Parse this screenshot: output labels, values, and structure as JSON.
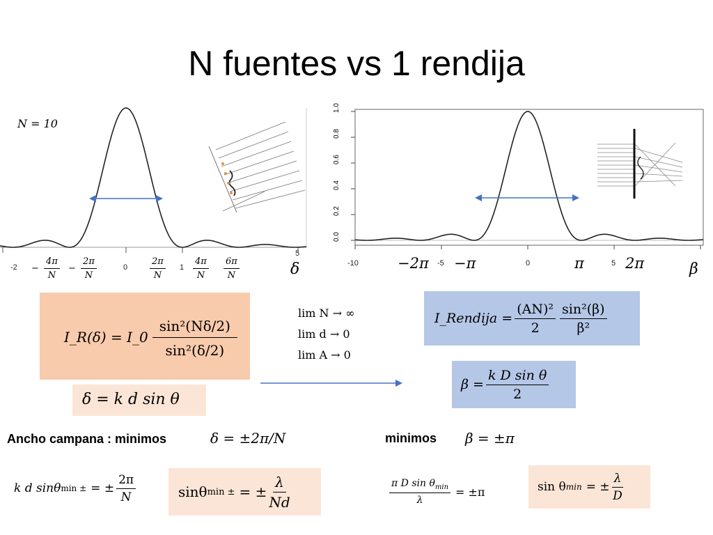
{
  "title": "N fuentes vs 1 rendija",
  "left_plot": {
    "n_label": "N = 10",
    "tick_numbers": [
      "-2",
      "0",
      "1",
      "5"
    ],
    "tick_fracs": [
      {
        "sign": "−",
        "num": "4π",
        "den": "N"
      },
      {
        "sign": "−",
        "num": "2π",
        "den": "N"
      },
      {
        "sign": "",
        "num": "2π",
        "den": "N"
      },
      {
        "sign": "",
        "num": "4π",
        "den": "N"
      },
      {
        "sign": "",
        "num": "6π",
        "den": "N"
      }
    ],
    "axis_symbol": "δ"
  },
  "right_plot": {
    "y_ticks": [
      "0.0",
      "0.2",
      "0.4",
      "0.6",
      "0.8",
      "1.0"
    ],
    "x_ticks": [
      "-10",
      "-5",
      "0",
      "5"
    ],
    "pi_labels": [
      "−2π",
      "−π",
      "π",
      "2π"
    ],
    "axis_symbol": "β"
  },
  "colors": {
    "orange_box": "#f8cbad",
    "light_orange_box": "#fbe5d6",
    "blue_box": "#b4c7e7",
    "arrow_blue": "#4472c4"
  },
  "equations": {
    "intensity_lhs": "I_R(δ) = I_0",
    "intensity_num": "sin²(Nδ/2)",
    "intensity_den": "sin²(δ/2)",
    "delta_def": "δ = k d  sin θ",
    "limits": [
      "lim N → ∞",
      "lim d → 0",
      "lim A → 0"
    ],
    "rendija_lhs": "I_Rendija =",
    "rendija_frac1_num": "(AN)²",
    "rendija_frac1_den": "2",
    "rendija_frac2_num": "sin²(β)",
    "rendija_frac2_den": "β²",
    "beta_lhs": "β =",
    "beta_num": "k D  sin θ",
    "beta_den": "2",
    "ancho_label": "Ancho campana : minimos",
    "ancho_eq": "δ = ±2π/N",
    "minimos_label": "minimos",
    "minimos_eq": "β = ±π",
    "kd_lhs": "k d  sinθ",
    "kd_sub": "min ±",
    "kd_rhs_sign": "= ±",
    "kd_num": "2π",
    "kd_den": "N",
    "sin_min_lhs": "sinθ",
    "sin_min_sub": "min ±",
    "sin_min_sign": "= ±",
    "sin_min_num": "λ",
    "sin_min_den": "Nd",
    "pi_d_num": "π D  sin θ",
    "pi_d_sub": "min",
    "pi_d_den": "λ",
    "pi_d_rhs": "= ±π",
    "sin_right_lhs": "sin θ",
    "sin_right_sub": "min",
    "sin_right_sign": "= ±",
    "sin_right_num": "λ",
    "sin_right_den": "D"
  }
}
